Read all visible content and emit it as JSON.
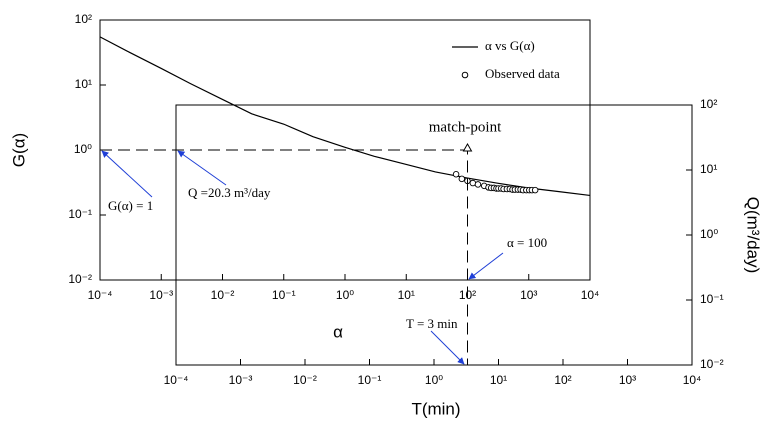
{
  "chart_data": [
    {
      "type": "line",
      "log_x": true,
      "log_y": true,
      "xlabel": "α",
      "ylabel": "G(α)",
      "xlim": [
        0.0001,
        10000
      ],
      "ylim": [
        0.01,
        100
      ],
      "xticks": [
        {
          "value": 0.0001,
          "label": "10⁻⁴"
        },
        {
          "value": 0.001,
          "label": "10⁻³"
        },
        {
          "value": 0.01,
          "label": "10⁻²"
        },
        {
          "value": 0.1,
          "label": "10⁻¹"
        },
        {
          "value": 1,
          "label": "10⁰"
        },
        {
          "value": 10,
          "label": "10¹"
        },
        {
          "value": 100,
          "label": "10²"
        },
        {
          "value": 1000,
          "label": "10³"
        },
        {
          "value": 10000,
          "label": "10⁴"
        }
      ],
      "yticks": [
        {
          "value": 0.01,
          "label": "10⁻²"
        },
        {
          "value": 0.1,
          "label": "10⁻¹"
        },
        {
          "value": 1,
          "label": "10⁰"
        },
        {
          "value": 10,
          "label": "10¹"
        },
        {
          "value": 100,
          "label": "10²"
        }
      ],
      "series": [
        {
          "name": "α vs G(α)",
          "color": "#000000",
          "x": [
            0.0001,
            0.0003,
            0.001,
            0.003,
            0.01,
            0.03,
            0.1,
            0.3,
            1,
            3,
            10,
            30,
            100,
            300,
            1000,
            3000,
            10000
          ],
          "values": [
            55,
            32,
            18,
            10.5,
            6,
            3.6,
            2.5,
            1.6,
            1.1,
            0.8,
            0.6,
            0.46,
            0.37,
            0.31,
            0.26,
            0.23,
            0.2
          ]
        }
      ],
      "match_point": {
        "alpha": 100,
        "G": 1
      },
      "annotations": [
        "match-point",
        "G(α) = 1",
        "α = 100"
      ]
    },
    {
      "type": "scatter",
      "log_x": true,
      "log_y": true,
      "xlabel": "T(min)",
      "ylabel": "Q(m³/day)",
      "xlim": [
        0.0001,
        10000
      ],
      "y2lim": [
        0.01,
        100
      ],
      "xticks": [
        {
          "value": 0.0001,
          "label": "10⁻⁴"
        },
        {
          "value": 0.001,
          "label": "10⁻³"
        },
        {
          "value": 0.01,
          "label": "10⁻²"
        },
        {
          "value": 0.1,
          "label": "10⁻¹"
        },
        {
          "value": 1,
          "label": "10⁰"
        },
        {
          "value": 10,
          "label": "10¹"
        },
        {
          "value": 100,
          "label": "10²"
        },
        {
          "value": 1000,
          "label": "10³"
        },
        {
          "value": 10000,
          "label": "10⁴"
        }
      ],
      "y2ticks": [
        {
          "value": 0.01,
          "label": "10⁻²"
        },
        {
          "value": 0.1,
          "label": "10⁻¹"
        },
        {
          "value": 1,
          "label": "10⁰"
        },
        {
          "value": 10,
          "label": "10¹"
        },
        {
          "value": 100,
          "label": "10²"
        }
      ],
      "series": [
        {
          "name": "Observed data",
          "color": "#000000",
          "axis": "y2",
          "x": [
            2.2,
            2.7,
            3.3,
            4,
            4.8,
            6,
            7,
            7.7,
            8.5,
            9.3,
            10,
            11,
            12,
            13.5,
            15,
            16.5,
            18,
            20,
            22,
            24,
            27,
            30,
            33,
            37
          ],
          "values": [
            8.6,
            7.3,
            6.8,
            6.3,
            6.0,
            5.7,
            5.4,
            5.3,
            5.3,
            5.2,
            5.2,
            5.2,
            5.1,
            5.1,
            5.1,
            5.0,
            5.0,
            5.0,
            5.0,
            4.9,
            4.9,
            4.9,
            4.9,
            4.9
          ]
        }
      ],
      "annotations": [
        "Q =20.3 m³/day",
        "T = 3 min"
      ]
    }
  ]
}
